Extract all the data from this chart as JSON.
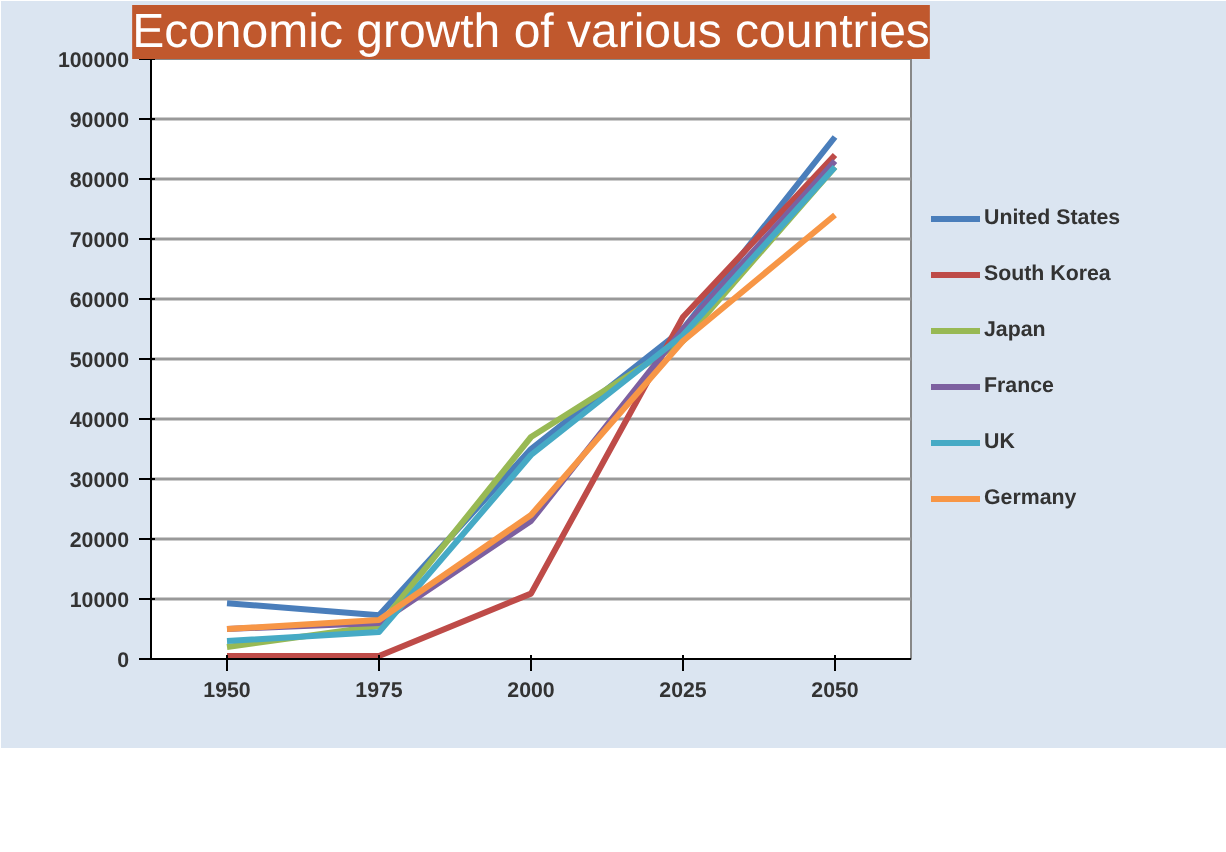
{
  "chart_data": {
    "type": "line",
    "title": "Economic growth of various countries",
    "x": [
      1950,
      1975,
      2000,
      2025,
      2050
    ],
    "xlim": [
      1937.5,
      2062.5
    ],
    "xticks": [
      1950,
      1975,
      2000,
      2025,
      2050
    ],
    "ylim": [
      0,
      100000
    ],
    "yticks": [
      0,
      10000,
      20000,
      30000,
      40000,
      50000,
      60000,
      70000,
      80000,
      90000,
      100000
    ],
    "grid": "y",
    "legend": "right",
    "marker": "none",
    "line_style": "solid",
    "series": [
      {
        "name": "United States",
        "color": "#4a7ebb",
        "values": [
          9300,
          7300,
          35000,
          55000,
          87000
        ]
      },
      {
        "name": "South Korea",
        "color": "#be4b48",
        "values": [
          500,
          500,
          10900,
          57000,
          84000
        ]
      },
      {
        "name": "Japan",
        "color": "#98b954",
        "values": [
          2000,
          5500,
          37000,
          53000,
          82000
        ]
      },
      {
        "name": "France",
        "color": "#7d60a0",
        "values": [
          5000,
          6000,
          23000,
          55000,
          83000
        ]
      },
      {
        "name": "UK",
        "color": "#46aac5",
        "values": [
          3000,
          4500,
          34000,
          54000,
          82000
        ]
      },
      {
        "name": "Germany",
        "color": "#f79646",
        "values": [
          5000,
          6500,
          24000,
          53000,
          74000
        ]
      }
    ]
  }
}
